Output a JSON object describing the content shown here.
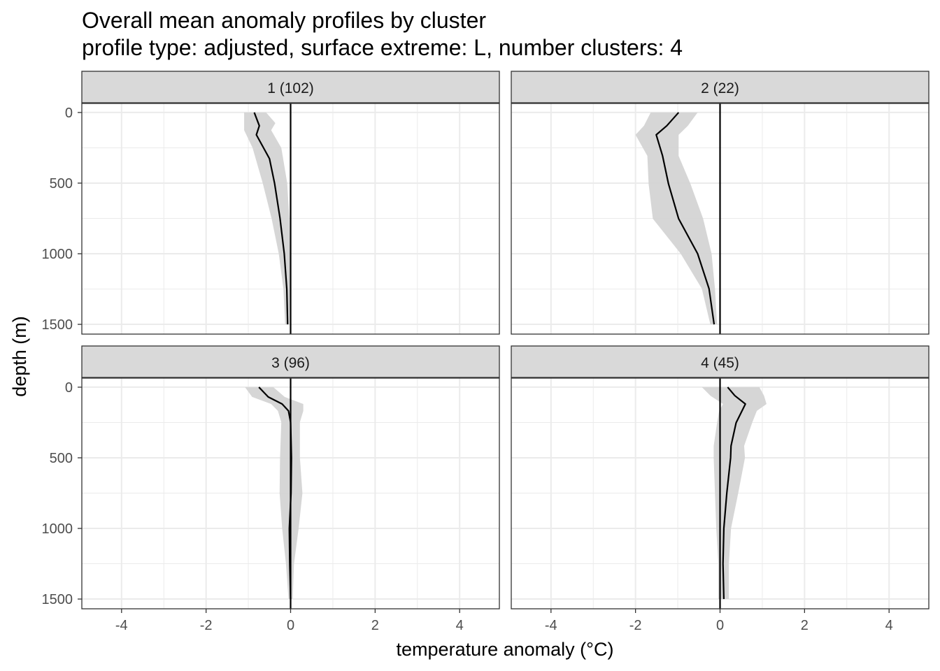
{
  "chart_data": {
    "type": "line",
    "title": "Overall mean anomaly profiles by cluster",
    "subtitle": "profile type: adjusted, surface extreme: L, number clusters: 4",
    "xlabel": "temperature anomaly (°C)",
    "ylabel": "depth (m)",
    "xlim": [
      -4.94,
      4.94
    ],
    "ylim": [
      1569,
      -64
    ],
    "y_reversed": true,
    "x_ticks": [
      -4,
      -2,
      0,
      2,
      4
    ],
    "x_tick_labels": [
      "-4",
      "-2",
      "0",
      "2",
      "4"
    ],
    "y_ticks": [
      0,
      500,
      1000,
      1500
    ],
    "y_tick_labels": [
      "0",
      "500",
      "1000",
      "1500"
    ],
    "grid": true,
    "reference_line_x": 0,
    "colors": {
      "line": "#000000",
      "ribbon": "#d4d4d4",
      "strip": "#d9d9d9",
      "grid": "#ebebeb"
    },
    "panels": [
      {
        "label": "1 (102)",
        "mean": [
          [
            0,
            -0.86
          ],
          [
            94,
            -0.74
          ],
          [
            158,
            -0.81
          ],
          [
            327,
            -0.5
          ],
          [
            500,
            -0.38
          ],
          [
            750,
            -0.25
          ],
          [
            1000,
            -0.15
          ],
          [
            1250,
            -0.09
          ],
          [
            1500,
            -0.07
          ]
        ],
        "lower": [
          [
            0,
            -1.1
          ],
          [
            75,
            -1.1
          ],
          [
            125,
            -1.1
          ],
          [
            250,
            -0.9
          ],
          [
            500,
            -0.66
          ],
          [
            750,
            -0.45
          ],
          [
            1000,
            -0.28
          ],
          [
            1250,
            -0.17
          ],
          [
            1500,
            -0.13
          ]
        ],
        "upper": [
          [
            0,
            -0.58
          ],
          [
            75,
            -0.36
          ],
          [
            125,
            -0.46
          ],
          [
            250,
            -0.22
          ],
          [
            500,
            -0.08
          ],
          [
            750,
            -0.03
          ],
          [
            1000,
            -0.02
          ],
          [
            1250,
            -0.02
          ],
          [
            1500,
            -0.03
          ]
        ]
      },
      {
        "label": "2 (22)",
        "mean": [
          [
            0,
            -0.98
          ],
          [
            94,
            -1.26
          ],
          [
            158,
            -1.51
          ],
          [
            307,
            -1.36
          ],
          [
            505,
            -1.22
          ],
          [
            752,
            -0.98
          ],
          [
            1000,
            -0.53
          ],
          [
            1248,
            -0.26
          ],
          [
            1500,
            -0.14
          ]
        ],
        "lower": [
          [
            0,
            -1.64
          ],
          [
            94,
            -1.8
          ],
          [
            158,
            -2.0
          ],
          [
            307,
            -1.72
          ],
          [
            505,
            -1.69
          ],
          [
            752,
            -1.59
          ],
          [
            1000,
            -0.93
          ],
          [
            1248,
            -0.43
          ],
          [
            1500,
            -0.23
          ]
        ],
        "upper": [
          [
            0,
            -0.53
          ],
          [
            94,
            -0.76
          ],
          [
            158,
            -0.98
          ],
          [
            307,
            -0.98
          ],
          [
            505,
            -0.7
          ],
          [
            752,
            -0.4
          ],
          [
            1000,
            -0.2
          ],
          [
            1248,
            -0.12
          ],
          [
            1500,
            -0.07
          ]
        ]
      },
      {
        "label": "3 (96)",
        "mean": [
          [
            0,
            -0.75
          ],
          [
            69,
            -0.53
          ],
          [
            119,
            -0.2
          ],
          [
            168,
            -0.05
          ],
          [
            248,
            0
          ],
          [
            500,
            0.02
          ],
          [
            750,
            0.01
          ],
          [
            1000,
            -0.03
          ],
          [
            1250,
            -0.02
          ],
          [
            1500,
            0
          ]
        ],
        "lower": [
          [
            0,
            -1.08
          ],
          [
            69,
            -0.91
          ],
          [
            119,
            -0.46
          ],
          [
            168,
            -0.3
          ],
          [
            248,
            -0.22
          ],
          [
            500,
            -0.25
          ],
          [
            750,
            -0.26
          ],
          [
            1000,
            -0.2
          ],
          [
            1250,
            -0.11
          ],
          [
            1500,
            -0.05
          ]
        ],
        "upper": [
          [
            0,
            -0.41
          ],
          [
            69,
            -0.14
          ],
          [
            119,
            0.3
          ],
          [
            168,
            0.3
          ],
          [
            248,
            0.22
          ],
          [
            500,
            0.22
          ],
          [
            750,
            0.28
          ],
          [
            1000,
            0.19
          ],
          [
            1250,
            0.08
          ],
          [
            1500,
            0.05
          ]
        ]
      },
      {
        "label": "4 (45)",
        "mean": [
          [
            0,
            0.18
          ],
          [
            60,
            0.35
          ],
          [
            119,
            0.6
          ],
          [
            252,
            0.38
          ],
          [
            416,
            0.26
          ],
          [
            500,
            0.25
          ],
          [
            750,
            0.16
          ],
          [
            1000,
            0.09
          ],
          [
            1250,
            0.07
          ],
          [
            1500,
            0.09
          ]
        ],
        "lower": [
          [
            0,
            -0.43
          ],
          [
            60,
            -0.23
          ],
          [
            119,
            0.07
          ],
          [
            168,
            -0.02
          ],
          [
            252,
            -0.07
          ],
          [
            416,
            -0.15
          ],
          [
            500,
            -0.15
          ],
          [
            750,
            -0.12
          ],
          [
            1000,
            -0.09
          ],
          [
            1250,
            -0.04
          ],
          [
            1500,
            -0.04
          ]
        ],
        "upper": [
          [
            0,
            0.93
          ],
          [
            60,
            1.04
          ],
          [
            119,
            1.1
          ],
          [
            168,
            0.87
          ],
          [
            252,
            0.76
          ],
          [
            416,
            0.57
          ],
          [
            500,
            0.59
          ],
          [
            750,
            0.43
          ],
          [
            1000,
            0.26
          ],
          [
            1250,
            0.21
          ],
          [
            1500,
            0.21
          ]
        ]
      }
    ]
  }
}
